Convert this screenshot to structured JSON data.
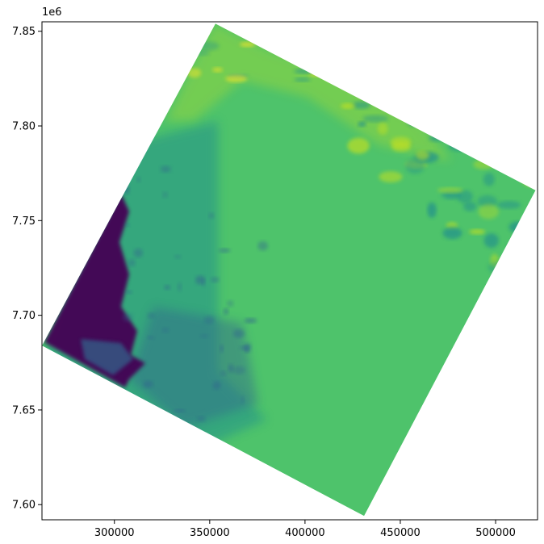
{
  "chart_data": {
    "type": "heatmap",
    "title": "",
    "xlabel": "",
    "ylabel": "",
    "colormap": "viridis",
    "xlim": [
      262000,
      522000
    ],
    "ylim": [
      7592000,
      7855000
    ],
    "x_ticks": [
      {
        "value": 300000,
        "label": "300000"
      },
      {
        "value": 350000,
        "label": "350000"
      },
      {
        "value": 400000,
        "label": "400000"
      },
      {
        "value": 450000,
        "label": "450000"
      },
      {
        "value": 500000,
        "label": "500000"
      }
    ],
    "y_ticks": [
      {
        "value": 7600000,
        "label": "7.60"
      },
      {
        "value": 7650000,
        "label": "7.65"
      },
      {
        "value": 7700000,
        "label": "7.70"
      },
      {
        "value": 7750000,
        "label": "7.75"
      },
      {
        "value": 7800000,
        "label": "7.80"
      },
      {
        "value": 7850000,
        "label": "7.85"
      }
    ],
    "y_offset_label": "1e6",
    "raster_footprint": [
      {
        "x": 353000,
        "y": 7854000
      },
      {
        "x": 521000,
        "y": 7766000
      },
      {
        "x": 431000,
        "y": 7594000
      },
      {
        "x": 262000,
        "y": 7684000
      }
    ],
    "colors": {
      "low": "#440154",
      "mid_low": "#31688e",
      "mid": "#21918c",
      "main": "#4ec36b",
      "high": "#bade28",
      "max": "#fde725"
    }
  }
}
